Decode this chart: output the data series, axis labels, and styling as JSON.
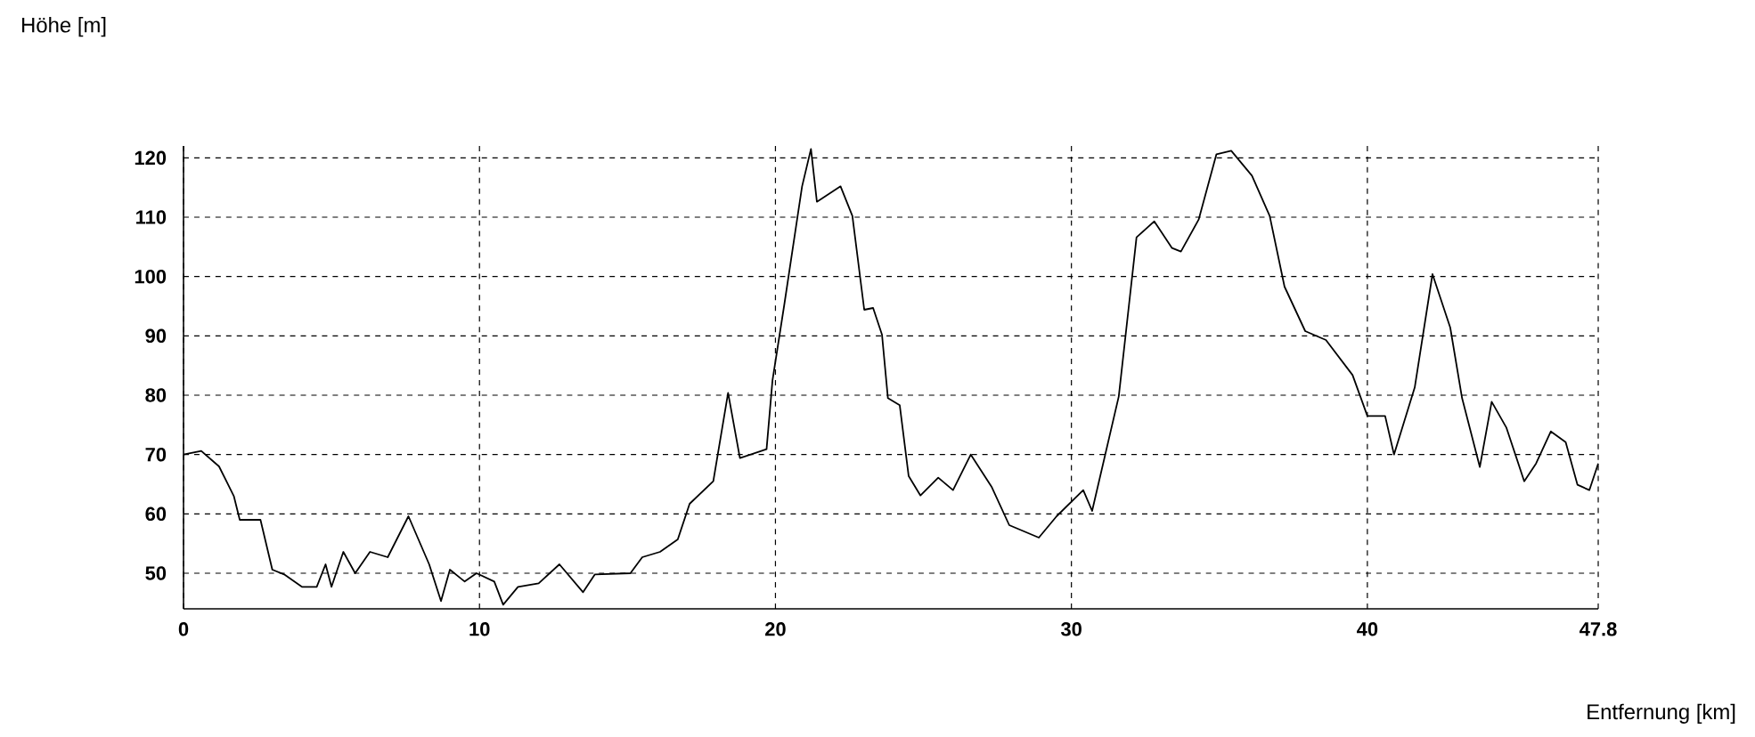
{
  "chart_data": {
    "type": "line",
    "title": "Höhe [m]",
    "xlabel": "Entfernung [km]",
    "xlim": [
      0,
      47.8
    ],
    "ylim": [
      44,
      122
    ],
    "xticks": [
      0,
      10,
      20,
      30,
      40,
      47.8
    ],
    "yticks": [
      50,
      60,
      70,
      80,
      90,
      100,
      110,
      120
    ],
    "grid": true,
    "marker": "none",
    "line_style": "solid",
    "series": [
      {
        "color": "#000000",
        "x": [
          0,
          0.6,
          1.2,
          1.7,
          1.9,
          2.6,
          3.0,
          3.4,
          4.0,
          4.5,
          4.8,
          5.0,
          5.4,
          5.8,
          6.3,
          6.9,
          7.6,
          8.3,
          8.7,
          9.0,
          9.5,
          9.9,
          10.5,
          10.8,
          11.3,
          12.0,
          12.7,
          13.5,
          13.9,
          15.1,
          15.5,
          16.1,
          16.7,
          17.1,
          17.9,
          18.4,
          18.8,
          19.7,
          19.9,
          20.3,
          20.9,
          21.2,
          21.4,
          22.2,
          22.6,
          23.0,
          23.3,
          23.6,
          23.8,
          24.2,
          24.5,
          24.9,
          25.5,
          26.0,
          26.6,
          27.3,
          27.9,
          28.9,
          29.5,
          30.4,
          30.7,
          31.6,
          32.2,
          32.8,
          33.4,
          33.7,
          34.3,
          34.9,
          35.4,
          36.1,
          36.7,
          37.2,
          37.9,
          38.6,
          39.5,
          40.0,
          40.6,
          40.9,
          41.6,
          42.2,
          42.8,
          43.2,
          43.8,
          44.2,
          44.7,
          45.3,
          45.7,
          46.2,
          46.7,
          47.1,
          47.5,
          47.8
        ],
        "values": [
          70,
          70.6,
          68,
          63,
          59,
          59,
          50.6,
          49.8,
          47.7,
          47.7,
          51.5,
          47.7,
          53.6,
          50,
          53.6,
          52.7,
          59.6,
          51.5,
          45.3,
          50.6,
          48.6,
          50,
          48.6,
          44.7,
          47.7,
          48.3,
          51.5,
          46.8,
          49.8,
          50,
          52.7,
          53.6,
          55.7,
          61.7,
          65.5,
          80.4,
          69.4,
          70.9,
          82.5,
          95.3,
          115.2,
          121.5,
          112.6,
          115.2,
          110.2,
          94.4,
          94.7,
          90.2,
          79.5,
          78.3,
          66.4,
          63.1,
          66.1,
          64,
          70,
          64.6,
          58.1,
          56,
          59.6,
          64,
          60.5,
          79.8,
          106.6,
          109.3,
          104.8,
          104.2,
          109.6,
          120.6,
          121.2,
          117,
          110.2,
          98.3,
          90.8,
          89.3,
          83.4,
          76.5,
          76.5,
          70,
          81.3,
          100.4,
          91.4,
          79.5,
          67.9,
          78.9,
          74.5,
          65.5,
          68.5,
          73.9,
          72.1,
          64.9,
          64,
          68.5
        ]
      }
    ]
  }
}
